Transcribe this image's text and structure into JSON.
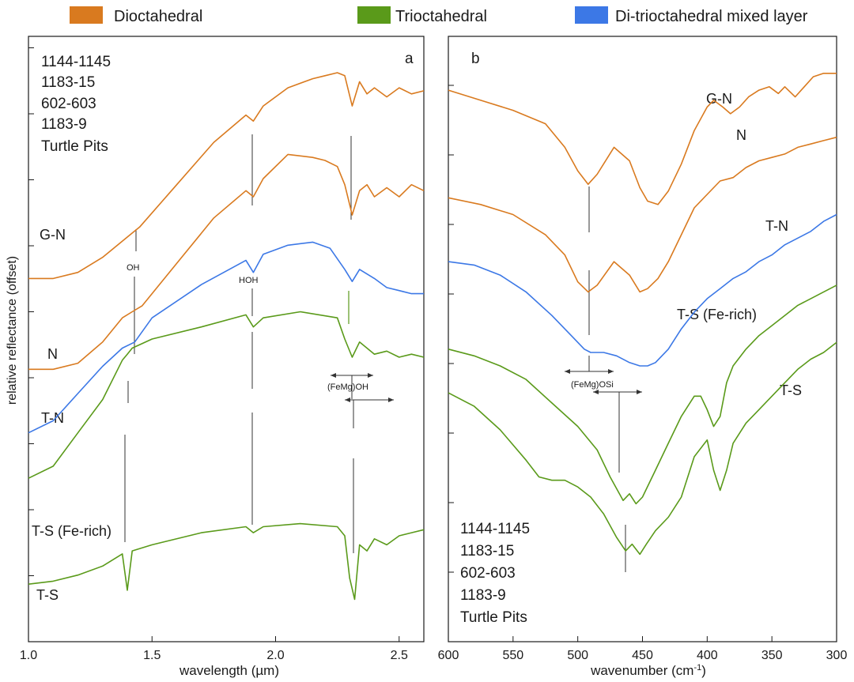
{
  "legend": {
    "placement": "top",
    "items": [
      {
        "label": "Dioctahedral",
        "color": "#d97a1f"
      },
      {
        "label": "Trioctahedral",
        "color": "#5a9a1a"
      },
      {
        "label": "Di-trioctahedral mixed layer",
        "color": "#3c78e6"
      }
    ]
  },
  "chart_data": [
    {
      "panel": "a",
      "type": "line",
      "xlabel": "wavelength (µm)",
      "ylabel": "relative reflectance (offset)",
      "xlim": [
        1.0,
        2.6
      ],
      "xticks": [
        "1.0",
        "1.5",
        "2.0",
        "2.5"
      ],
      "sample_list": [
        "1144-1145",
        "1183-15",
        "602-603",
        "1183-9",
        "Turtle Pits"
      ],
      "features": [
        {
          "label": "OH",
          "x": 1.41
        },
        {
          "label": "HOH",
          "x": 1.91
        },
        {
          "label": "(FeMg)OH",
          "x": 2.31
        }
      ],
      "series": [
        {
          "name": "G-N",
          "group": "Dioctahedral",
          "x": [
            1.0,
            1.1,
            1.2,
            1.3,
            1.42,
            1.45,
            1.6,
            1.75,
            1.88,
            1.91,
            1.95,
            2.05,
            2.15,
            2.2,
            2.25,
            2.28,
            2.31,
            2.34,
            2.37,
            2.4,
            2.45,
            2.5,
            2.55,
            2.6
          ],
          "y": [
            0.35,
            0.35,
            0.37,
            0.42,
            0.5,
            0.52,
            0.66,
            0.8,
            0.89,
            0.87,
            0.92,
            0.98,
            1.01,
            1.02,
            1.03,
            1.02,
            0.92,
            1.0,
            0.96,
            0.98,
            0.95,
            0.98,
            0.96,
            0.97
          ]
        },
        {
          "name": "N",
          "group": "Dioctahedral",
          "x": [
            1.0,
            1.1,
            1.2,
            1.3,
            1.38,
            1.42,
            1.46,
            1.6,
            1.75,
            1.88,
            1.91,
            1.95,
            2.05,
            2.15,
            2.2,
            2.25,
            2.28,
            2.31,
            2.34,
            2.37,
            2.4,
            2.45,
            2.5,
            2.55,
            2.6
          ],
          "y": [
            0.05,
            0.05,
            0.07,
            0.14,
            0.22,
            0.24,
            0.26,
            0.4,
            0.55,
            0.64,
            0.62,
            0.68,
            0.76,
            0.75,
            0.74,
            0.72,
            0.66,
            0.56,
            0.64,
            0.66,
            0.62,
            0.65,
            0.62,
            0.66,
            0.64
          ]
        },
        {
          "name": "T-N",
          "group": "Di-trioctahedral mixed layer",
          "x": [
            1.0,
            1.1,
            1.2,
            1.3,
            1.38,
            1.43,
            1.5,
            1.7,
            1.88,
            1.91,
            1.95,
            2.05,
            2.15,
            2.22,
            2.28,
            2.31,
            2.34,
            2.4,
            2.45,
            2.5,
            2.55,
            2.6
          ],
          "y": [
            -0.16,
            -0.12,
            -0.03,
            0.06,
            0.12,
            0.14,
            0.22,
            0.33,
            0.41,
            0.37,
            0.43,
            0.46,
            0.47,
            0.45,
            0.38,
            0.34,
            0.38,
            0.35,
            0.32,
            0.31,
            0.3,
            0.3
          ]
        },
        {
          "name": "T-S (Fe-rich)",
          "group": "Trioctahedral",
          "x": [
            1.0,
            1.1,
            1.2,
            1.3,
            1.38,
            1.4,
            1.42,
            1.5,
            1.7,
            1.88,
            1.91,
            1.95,
            2.1,
            2.25,
            2.28,
            2.31,
            2.34,
            2.37,
            2.4,
            2.45,
            2.5,
            2.55,
            2.6
          ],
          "y": [
            -0.31,
            -0.27,
            -0.16,
            -0.05,
            0.08,
            0.1,
            0.12,
            0.15,
            0.19,
            0.23,
            0.19,
            0.22,
            0.24,
            0.22,
            0.15,
            0.09,
            0.14,
            0.12,
            0.1,
            0.11,
            0.09,
            0.1,
            0.09
          ]
        },
        {
          "name": "T-S",
          "group": "Trioctahedral",
          "x": [
            1.0,
            1.1,
            1.2,
            1.3,
            1.38,
            1.4,
            1.42,
            1.5,
            1.7,
            1.88,
            1.91,
            1.95,
            2.1,
            2.25,
            2.28,
            2.3,
            2.32,
            2.34,
            2.37,
            2.4,
            2.45,
            2.5,
            2.55,
            2.6
          ],
          "y": [
            -0.66,
            -0.65,
            -0.63,
            -0.6,
            -0.56,
            -0.68,
            -0.55,
            -0.53,
            -0.49,
            -0.47,
            -0.49,
            -0.47,
            -0.46,
            -0.47,
            -0.5,
            -0.64,
            -0.71,
            -0.53,
            -0.55,
            -0.51,
            -0.53,
            -0.5,
            -0.49,
            -0.48
          ]
        }
      ]
    },
    {
      "panel": "b",
      "type": "line",
      "xlabel": "wavenumber (cm⁻¹)",
      "xlim": [
        600,
        300
      ],
      "xticks": [
        "600",
        "550",
        "500",
        "450",
        "400",
        "350",
        "300"
      ],
      "sample_list": [
        "1144-1145",
        "1183-15",
        "602-603",
        "1183-9",
        "Turtle Pits"
      ],
      "features": [
        {
          "label": "(FeMg)OSi",
          "x": 492
        }
      ],
      "series": [
        {
          "name": "G-N",
          "group": "Dioctahedral",
          "x": [
            600,
            575,
            550,
            525,
            510,
            500,
            492,
            485,
            472,
            460,
            452,
            446,
            438,
            430,
            420,
            410,
            400,
            395,
            388,
            382,
            375,
            368,
            360,
            352,
            345,
            340,
            332,
            325,
            318,
            310,
            300
          ],
          "y": [
            0.89,
            0.86,
            0.83,
            0.79,
            0.72,
            0.65,
            0.61,
            0.64,
            0.72,
            0.68,
            0.6,
            0.56,
            0.55,
            0.59,
            0.67,
            0.77,
            0.84,
            0.86,
            0.84,
            0.82,
            0.84,
            0.87,
            0.89,
            0.9,
            0.88,
            0.9,
            0.87,
            0.9,
            0.93,
            0.94,
            0.94
          ]
        },
        {
          "name": "N",
          "group": "Dioctahedral",
          "x": [
            600,
            575,
            550,
            525,
            510,
            500,
            492,
            485,
            472,
            460,
            452,
            446,
            438,
            430,
            420,
            410,
            400,
            390,
            380,
            370,
            360,
            350,
            340,
            330,
            320,
            310,
            300
          ],
          "y": [
            0.57,
            0.55,
            0.52,
            0.46,
            0.4,
            0.32,
            0.29,
            0.31,
            0.38,
            0.34,
            0.29,
            0.3,
            0.33,
            0.38,
            0.46,
            0.54,
            0.58,
            0.62,
            0.63,
            0.66,
            0.68,
            0.69,
            0.7,
            0.72,
            0.73,
            0.74,
            0.75
          ]
        },
        {
          "name": "T-N",
          "group": "Di-trioctahedral mixed layer",
          "x": [
            600,
            580,
            560,
            540,
            520,
            505,
            495,
            490,
            480,
            470,
            460,
            452,
            446,
            440,
            430,
            420,
            410,
            400,
            390,
            380,
            370,
            360,
            350,
            340,
            330,
            320,
            310,
            300
          ],
          "y": [
            0.38,
            0.37,
            0.34,
            0.29,
            0.22,
            0.16,
            0.12,
            0.11,
            0.11,
            0.1,
            0.08,
            0.07,
            0.07,
            0.08,
            0.12,
            0.18,
            0.23,
            0.27,
            0.3,
            0.33,
            0.35,
            0.38,
            0.4,
            0.43,
            0.45,
            0.47,
            0.5,
            0.52
          ]
        },
        {
          "name": "T-S (Fe-rich)",
          "group": "Trioctahedral",
          "x": [
            600,
            580,
            560,
            540,
            520,
            500,
            485,
            475,
            465,
            460,
            455,
            450,
            440,
            430,
            420,
            410,
            405,
            400,
            395,
            390,
            385,
            380,
            370,
            360,
            350,
            340,
            330,
            320,
            310,
            300
          ],
          "y": [
            0.12,
            0.1,
            0.07,
            0.03,
            -0.04,
            -0.11,
            -0.18,
            -0.26,
            -0.33,
            -0.31,
            -0.34,
            -0.32,
            -0.24,
            -0.16,
            -0.08,
            -0.02,
            -0.02,
            -0.06,
            -0.11,
            -0.08,
            0.02,
            0.07,
            0.12,
            0.16,
            0.19,
            0.22,
            0.25,
            0.27,
            0.29,
            0.31
          ]
        },
        {
          "name": "T-S",
          "group": "Trioctahedral",
          "x": [
            600,
            580,
            560,
            540,
            530,
            520,
            510,
            500,
            490,
            480,
            470,
            463,
            458,
            452,
            447,
            440,
            430,
            420,
            410,
            400,
            395,
            390,
            385,
            380,
            370,
            360,
            350,
            340,
            330,
            320,
            310,
            300
          ],
          "y": [
            -0.01,
            -0.05,
            -0.12,
            -0.21,
            -0.26,
            -0.27,
            -0.27,
            -0.29,
            -0.32,
            -0.37,
            -0.44,
            -0.48,
            -0.46,
            -0.49,
            -0.46,
            -0.42,
            -0.38,
            -0.32,
            -0.2,
            -0.15,
            -0.24,
            -0.3,
            -0.24,
            -0.16,
            -0.1,
            -0.06,
            -0.02,
            0.02,
            0.06,
            0.09,
            0.11,
            0.14
          ]
        }
      ]
    }
  ],
  "labels": {
    "a_tag": "a",
    "b_tag": "b",
    "oh": "OH",
    "hoh": "HOH",
    "femgoh": "(FeMg)OH",
    "femgosi": "(FeMg)OSi",
    "a_samples": [
      "1144-1145",
      "1183-15",
      "602-603",
      "1183-9",
      "Turtle Pits"
    ],
    "b_samples": [
      "1144-1145",
      "1183-15",
      "602-603",
      "1183-9",
      "Turtle Pits"
    ],
    "a_series": [
      "G-N",
      "N",
      "T-N",
      "T-S (Fe-rich)",
      "T-S"
    ],
    "b_series": [
      "G-N",
      "N",
      "T-N",
      "T-S (Fe-rich)",
      "T-S"
    ]
  },
  "axis_text": {
    "ylabel": "relative reflectance (offset)",
    "a_xlabel": "wavelength (µm)",
    "b_xlabel_main": "wavenumber (cm",
    "b_xlabel_sup": "-1",
    "b_xlabel_end": ")"
  }
}
